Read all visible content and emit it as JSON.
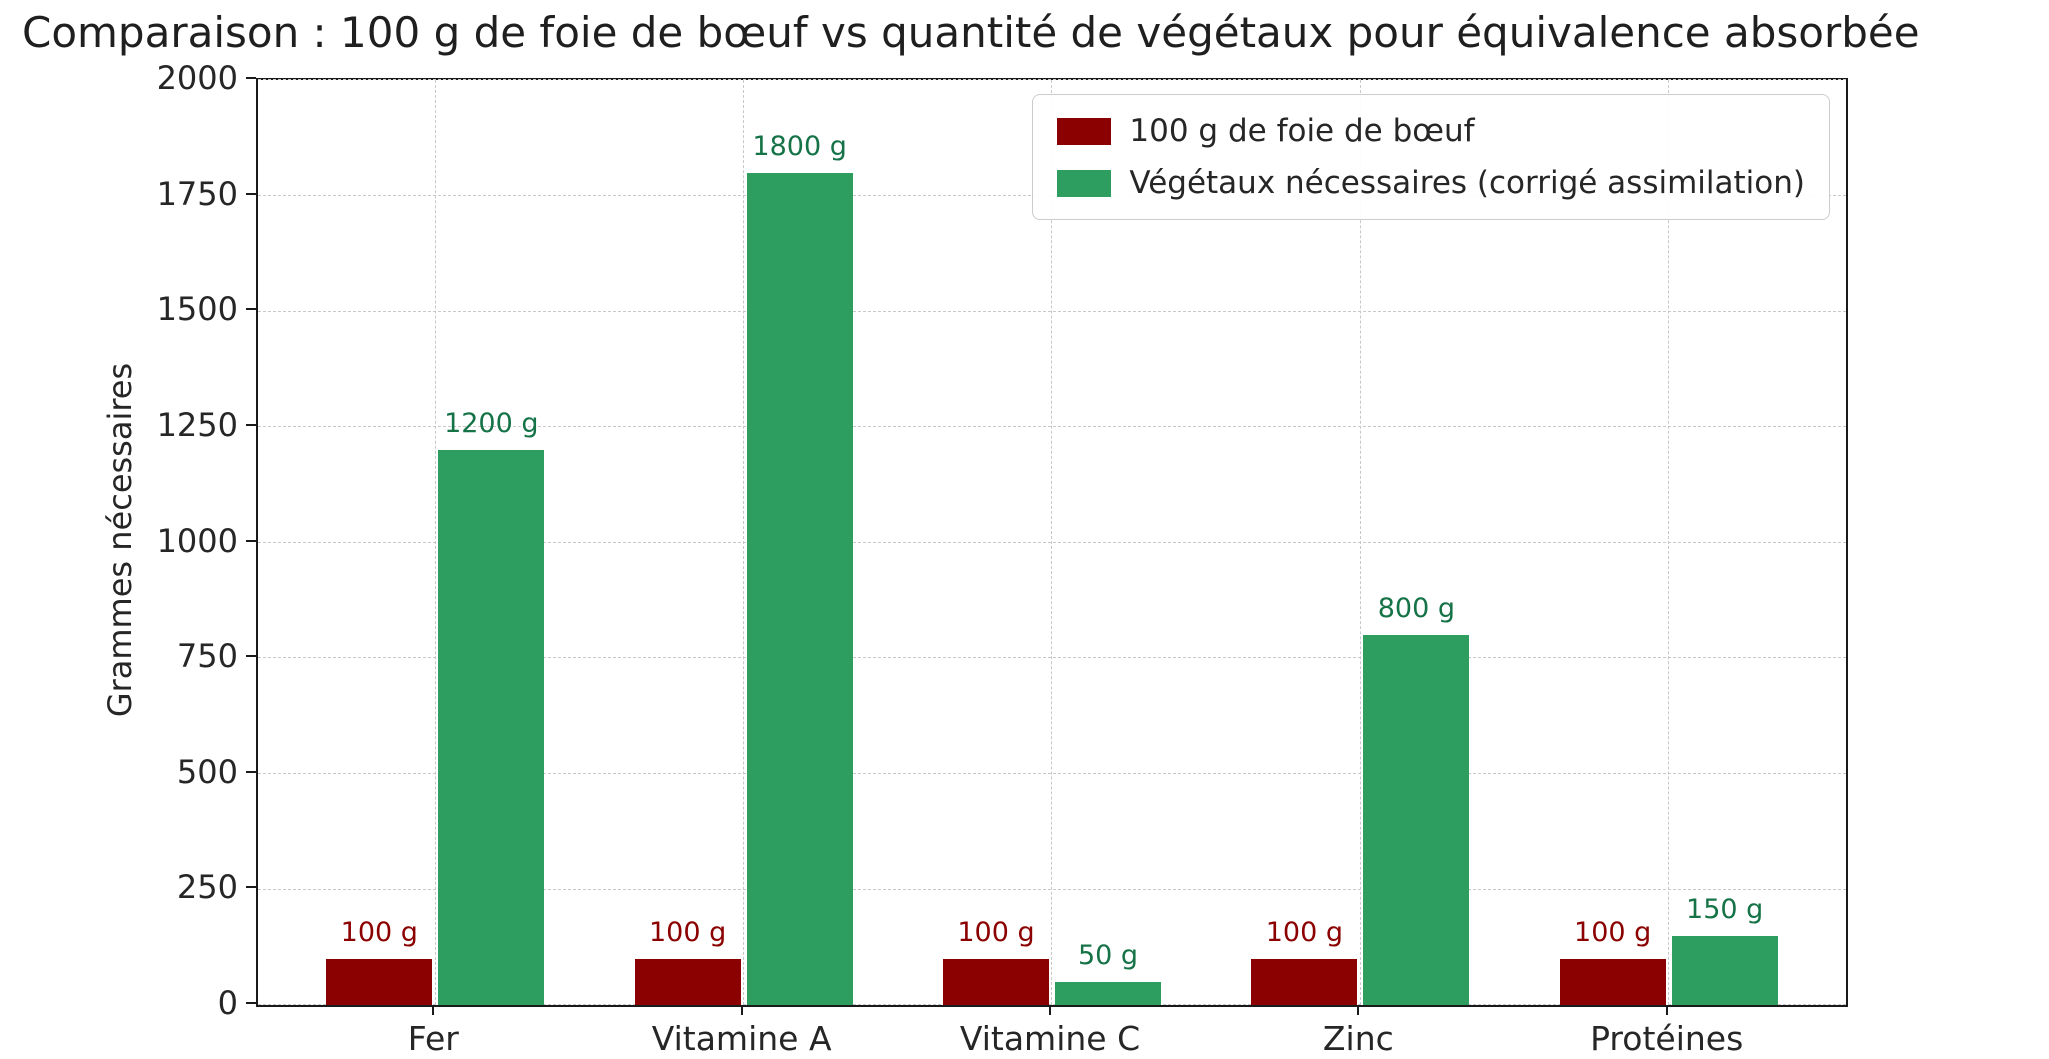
{
  "chart_data": {
    "type": "bar",
    "title": "Comparaison : 100 g de foie de bœuf vs quantité de végétaux pour équivalence absorbée",
    "ylabel": "Grammes nécessaires",
    "xlabel": "",
    "categories": [
      "Fer",
      "Vitamine A",
      "Vitamine C",
      "Zinc",
      "Protéines"
    ],
    "series": [
      {
        "name": "100 g de foie de bœuf",
        "color": "#8b0000",
        "label_color": "#8b0000",
        "values": [
          100,
          100,
          100,
          100,
          100
        ],
        "value_labels": [
          "100 g",
          "100 g",
          "100 g",
          "100 g",
          "100 g"
        ]
      },
      {
        "name": "Végétaux nécessaires (corrigé assimilation)",
        "color": "#2e9e60",
        "label_color": "#157347",
        "values": [
          1200,
          1800,
          50,
          800,
          150
        ],
        "value_labels": [
          "1200 g",
          "1800 g",
          "50 g",
          "800 g",
          "150 g"
        ]
      }
    ],
    "ylim": [
      0,
      2000
    ],
    "yticks": [
      0,
      250,
      500,
      750,
      1000,
      1250,
      1500,
      1750,
      2000
    ],
    "grid": true,
    "grid_style": "dashed",
    "legend_position": "upper right"
  }
}
